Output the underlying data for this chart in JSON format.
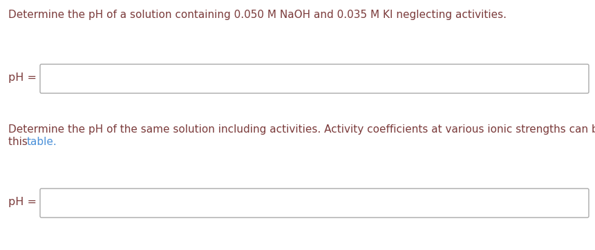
{
  "background_color": "#ffffff",
  "text_color_main": "#7B3B3B",
  "text_color_link": "#4a90d9",
  "line1": "Determine the pH of a solution containing 0.050 M NaOH and 0.035 M KI neglecting activities.",
  "ph_label": "pH =",
  "line2_part1": "Determine the pH of the same solution including activities. Activity coefficients at various ionic strengths can be found in",
  "line2_part2": "this ",
  "line2_link": "table.",
  "font_size": 11.0
}
